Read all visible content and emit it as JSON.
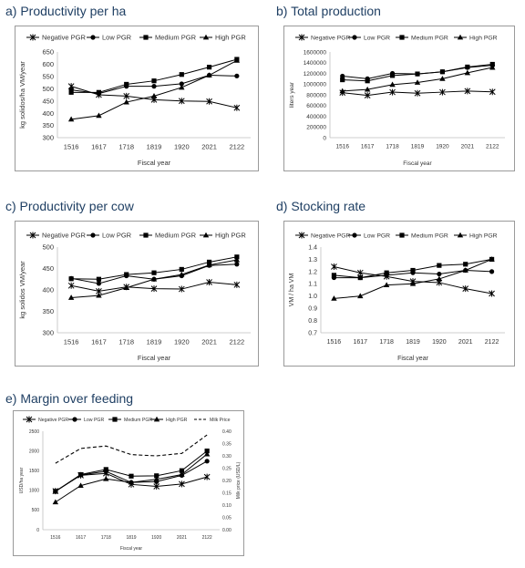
{
  "panels": [
    {
      "panel_title": "a)   Productivity per ha",
      "chart_data": {
        "type": "line",
        "categories": [
          "1516",
          "1617",
          "1718",
          "1819",
          "1920",
          "2021",
          "2122"
        ],
        "xlabel": "Fiscal year",
        "ylabel": "kg solidos/ha VM/year",
        "ylim": [
          300,
          650
        ],
        "yticks": [
          300,
          350,
          400,
          450,
          500,
          550,
          600,
          650
        ],
        "grid": false,
        "legend_position": "top",
        "series": [
          {
            "name": "Negative PGR",
            "marker": "star",
            "values": [
              510,
              475,
              470,
              455,
              450,
              448,
              422
            ]
          },
          {
            "name": "Low PGR",
            "marker": "circle",
            "values": [
              495,
              480,
              510,
              510,
              520,
              555,
              552
            ]
          },
          {
            "name": "Medium PGR",
            "marker": "square",
            "values": [
              485,
              485,
              518,
              532,
              558,
              588,
              620
            ]
          },
          {
            "name": "High PGR",
            "marker": "triangle",
            "values": [
              375,
              390,
              445,
              470,
              505,
              555,
              615
            ]
          }
        ]
      }
    },
    {
      "panel_title": "b) Total production",
      "chart_data": {
        "type": "line",
        "categories": [
          "1516",
          "1617",
          "1718",
          "1819",
          "1920",
          "2021",
          "2122"
        ],
        "xlabel": "Fiscal year",
        "ylabel": "liters year",
        "ylim": [
          0,
          1600000
        ],
        "yticks": [
          0,
          200000,
          400000,
          600000,
          800000,
          1000000,
          1200000,
          1400000,
          1600000
        ],
        "grid": false,
        "legend_position": "top",
        "series": [
          {
            "name": "Negative PGR",
            "marker": "star",
            "values": [
              840000,
              790000,
              850000,
              830000,
              850000,
              870000,
              855000
            ]
          },
          {
            "name": "Low PGR",
            "marker": "circle",
            "values": [
              1150000,
              1100000,
              1200000,
              1190000,
              1230000,
              1310000,
              1350000
            ]
          },
          {
            "name": "Medium PGR",
            "marker": "square",
            "values": [
              1080000,
              1060000,
              1160000,
              1190000,
              1230000,
              1320000,
              1370000
            ]
          },
          {
            "name": "High PGR",
            "marker": "triangle",
            "values": [
              870000,
              900000,
              990000,
              1030000,
              1100000,
              1210000,
              1310000
            ]
          }
        ]
      }
    },
    {
      "panel_title": "c) Productivity per cow",
      "chart_data": {
        "type": "line",
        "categories": [
          "1516",
          "1617",
          "1718",
          "1819",
          "1920",
          "2021",
          "2122"
        ],
        "xlabel": "Fiscal year",
        "ylabel": "kg solidos VM/year",
        "ylim": [
          300,
          500
        ],
        "yticks": [
          300,
          350,
          400,
          450,
          500
        ],
        "grid": false,
        "legend_position": "top",
        "series": [
          {
            "name": "Negative PGR",
            "marker": "star",
            "values": [
              410,
              397,
              407,
              403,
              402,
              418,
              412
            ]
          },
          {
            "name": "Low PGR",
            "marker": "circle",
            "values": [
              427,
              415,
              433,
              425,
              433,
              457,
              460
            ]
          },
          {
            "name": "Medium PGR",
            "marker": "square",
            "values": [
              426,
              425,
              436,
              440,
              448,
              465,
              477
            ]
          },
          {
            "name": "High PGR",
            "marker": "triangle",
            "values": [
              382,
              387,
              405,
              425,
              436,
              458,
              470
            ]
          }
        ]
      }
    },
    {
      "panel_title": "d) Stocking rate",
      "chart_data": {
        "type": "line",
        "categories": [
          "1516",
          "1617",
          "1718",
          "1819",
          "1920",
          "2021",
          "2122"
        ],
        "xlabel": "Fiscal year",
        "ylabel": "VM / ha VM",
        "ylim": [
          0.7,
          1.4
        ],
        "yticks": [
          0.7,
          0.8,
          0.9,
          1.0,
          1.1,
          1.2,
          1.3,
          1.4
        ],
        "grid": false,
        "legend_position": "top",
        "series": [
          {
            "name": "Negative PGR",
            "marker": "star",
            "values": [
              1.24,
              1.19,
              1.16,
              1.12,
              1.11,
              1.06,
              1.02
            ]
          },
          {
            "name": "Low PGR",
            "marker": "circle",
            "values": [
              1.15,
              1.15,
              1.17,
              1.19,
              1.18,
              1.21,
              1.2
            ]
          },
          {
            "name": "Medium PGR",
            "marker": "square",
            "values": [
              1.17,
              1.15,
              1.19,
              1.21,
              1.25,
              1.26,
              1.3
            ]
          },
          {
            "name": "High PGR",
            "marker": "triangle",
            "values": [
              0.98,
              1.0,
              1.09,
              1.1,
              1.14,
              1.21,
              1.3
            ]
          }
        ]
      }
    },
    {
      "panel_title": "e) Margin over feeding",
      "chart_data": {
        "type": "line",
        "categories": [
          "1516",
          "1617",
          "1718",
          "1819",
          "1920",
          "2021",
          "2122"
        ],
        "xlabel": "Fiscal year",
        "ylabel": "USD/ha year",
        "ylabel_right": "Milk price (USD/L)",
        "ylim": [
          0,
          2500
        ],
        "yticks": [
          0,
          500,
          1000,
          1500,
          2000,
          2500
        ],
        "ylim_right": [
          0,
          0.4
        ],
        "yticks_right": [
          "0.00",
          "0.05",
          "0.10",
          "0.15",
          "0.20",
          "0.25",
          "0.30",
          "0.35",
          "0.40"
        ],
        "grid": false,
        "legend_position": "top",
        "series": [
          {
            "name": "Negative PGR",
            "marker": "star",
            "values": [
              980,
              1380,
              1430,
              1150,
              1100,
              1160,
              1340
            ]
          },
          {
            "name": "Low PGR",
            "marker": "circle",
            "values": [
              970,
              1390,
              1480,
              1200,
              1220,
              1380,
              1740
            ]
          },
          {
            "name": "Medium PGR",
            "marker": "square",
            "values": [
              975,
              1400,
              1530,
              1360,
              1370,
              1500,
              2000
            ]
          },
          {
            "name": "High PGR",
            "marker": "triangle",
            "values": [
              700,
              1120,
              1290,
              1200,
              1280,
              1400,
              1920
            ]
          },
          {
            "name": "Milk Price",
            "marker": "none",
            "dashed": true,
            "axis": "right",
            "values": [
              0.27,
              0.33,
              0.34,
              0.305,
              0.3,
              0.31,
              0.385
            ]
          }
        ]
      }
    }
  ]
}
